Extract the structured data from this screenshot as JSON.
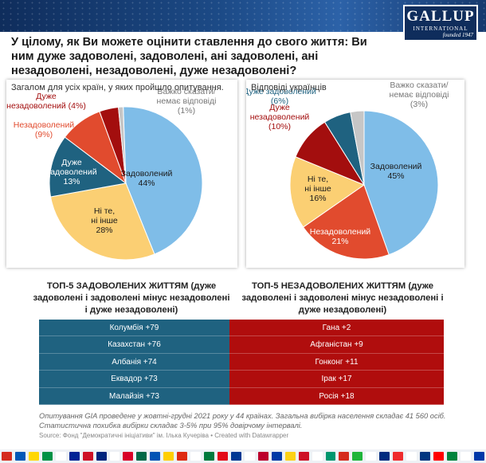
{
  "header": {
    "logo": {
      "name": "GALLUP",
      "sub": "INTERNATIONAL",
      "founded": "founded 1947"
    },
    "headline": "У цілому, як Ви можете оцінити ставлення до свого життя: Ви ним дуже задоволені, задоволені, ані задоволені, ані незадоволені, незадоволені, дуже незадоволені?"
  },
  "chart_data": [
    {
      "type": "pie",
      "title": "Загалом для усіх країн, у яких пройшло опитування.",
      "slices": [
        {
          "label_lines": [
            "Задоволений",
            "44%"
          ],
          "value": 44,
          "color": "#7fbde8",
          "text_color": "#1a1a1a",
          "label_inside": true
        },
        {
          "label_lines": [
            "Ні те,",
            "ні інше",
            "28%"
          ],
          "value": 28,
          "color": "#fbcf73",
          "text_color": "#1a1a1a",
          "label_inside": true
        },
        {
          "label_lines": [
            "Дуже",
            "задоволений",
            "13%"
          ],
          "value": 13,
          "color": "#1f6280",
          "text_color": "#ffffff",
          "label_inside": true
        },
        {
          "label_lines": [
            "Незадоволений",
            "(9%)"
          ],
          "value": 9,
          "color": "#e14b2e",
          "text_color": "#e14b2e",
          "label_inside": false
        },
        {
          "label_lines": [
            "Дуже",
            "незадоволений (4%)"
          ],
          "value": 4,
          "color": "#a30e0e",
          "text_color": "#a30e0e",
          "label_inside": false
        },
        {
          "label_lines": [
            "Важко сказати/",
            "немає відповіді",
            "(1%)"
          ],
          "value": 1,
          "color": "#c6c6c6",
          "text_color": "#777777",
          "label_inside": false
        }
      ]
    },
    {
      "type": "pie",
      "title": "Відповіді українців",
      "slices": [
        {
          "label_lines": [
            "Задоволений",
            "45%"
          ],
          "value": 45,
          "color": "#7fbde8",
          "text_color": "#1a1a1a",
          "label_inside": true
        },
        {
          "label_lines": [
            "Незадоволений",
            "21%"
          ],
          "value": 21,
          "color": "#e14b2e",
          "text_color": "#ffffff",
          "label_inside": true
        },
        {
          "label_lines": [
            "Ні те,",
            "ні інше",
            "16%"
          ],
          "value": 16,
          "color": "#fbcf73",
          "text_color": "#1a1a1a",
          "label_inside": true
        },
        {
          "label_lines": [
            "Дуже",
            "незадоволений",
            "(10%)"
          ],
          "value": 10,
          "color": "#a30e0e",
          "text_color": "#a30e0e",
          "label_inside": false
        },
        {
          "label_lines": [
            "Дуже задоволений",
            "(6%)"
          ],
          "value": 6,
          "color": "#1f6280",
          "text_color": "#1f6280",
          "label_inside": false
        },
        {
          "label_lines": [
            "Важко сказати/",
            "немає відповіді",
            "(3%)"
          ],
          "value": 3,
          "color": "#c6c6c6",
          "text_color": "#777777",
          "label_inside": false
        }
      ]
    },
    {
      "type": "table",
      "title": "ТОП-5 ЗАДОВОЛЕНИХ ЖИТТЯМ (дуже задоволені і задоволені мінус незадоволені і дуже незадоволені)",
      "rows": [
        "Колумбія +79",
        "Казахстан +76",
        "Албанія +74",
        "Еквадор +73",
        "Малайзія +73"
      ]
    },
    {
      "type": "table",
      "title": "ТОП-5 НЕЗАДОВОЛЕНИХ ЖИТТЯМ (дуже задоволені і задоволені мінус незадоволені і дуже незадоволені)",
      "rows": [
        "Гана +2",
        "Афганістан +9",
        "Гонконг +11",
        "Ірак +17",
        "Росія +18"
      ]
    }
  ],
  "footer": {
    "note": "Опитування GIA проведене у жовтні-грудні 2021 року у 44 країнах. Загальна вибірка населення складає 41 560 осіб. Статистична похибка вибірки складає 3-5% при 95% довірчому інтервалі.",
    "source": "Source: Фонд \"Демократичні ініціативи\" ім. Ілька Кучеріва • Created with Datawrapper"
  },
  "colors": {
    "banner": "#1c4a86",
    "satisfied_table": "#1f6280",
    "dissatisfied_table": "#b00d0d",
    "flags": [
      "#d52b1e",
      "#0057b7",
      "#ffd700",
      "#009246",
      "#ffffff",
      "#002395",
      "#ce1126",
      "#00247d",
      "#ffffff",
      "#d80027",
      "#006847",
      "#0052b4",
      "#ffce00",
      "#de2910",
      "#ffffff",
      "#007a3d",
      "#e30a17",
      "#003893",
      "#ffffff",
      "#bc002d",
      "#0039a6",
      "#fcd116",
      "#ce1126",
      "#ffffff",
      "#00966e",
      "#d52b1e",
      "#1eb53a",
      "#ffffff",
      "#002b7f",
      "#ef2b2d",
      "#ffffff",
      "#003580",
      "#ff0000",
      "#00843d",
      "#ffffff",
      "#0038a8"
    ]
  }
}
